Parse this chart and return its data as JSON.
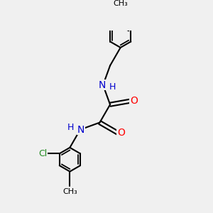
{
  "background_color": "#f0f0f0",
  "bond_color": "#000000",
  "N_color": "#0000cd",
  "O_color": "#ff0000",
  "Cl_color": "#228b22",
  "line_width": 1.5,
  "figsize": [
    3.0,
    3.0
  ],
  "dpi": 100,
  "xlim": [
    0,
    10
  ],
  "ylim": [
    0,
    10
  ]
}
